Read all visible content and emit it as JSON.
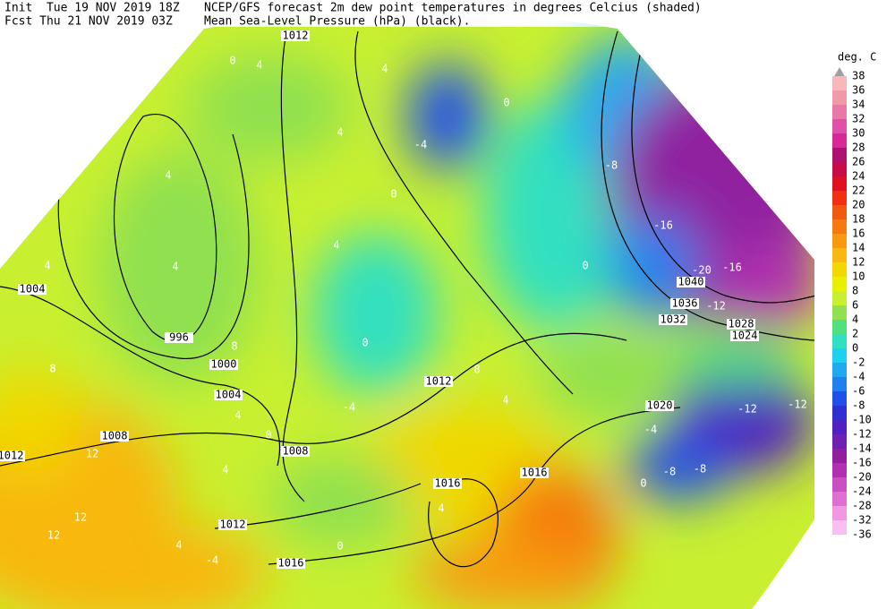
{
  "header": {
    "init": "Init  Tue 19 NOV 2019 18Z",
    "title": "NCEP/GFS forecast 2m dew point temperatures in degrees Celcius (shaded)",
    "forecast": "Fcst Thu 21 NOV 2019 03Z",
    "subtitle": "Mean Sea-Level Pressure (hPa) (black)."
  },
  "colorbar": {
    "unit": "deg. C",
    "items": [
      {
        "label": "38",
        "color": "#a0a0a0"
      },
      {
        "label": "36",
        "color": "#f8b8b8"
      },
      {
        "label": "34",
        "color": "#f09aa8"
      },
      {
        "label": "32",
        "color": "#e878a8"
      },
      {
        "label": "30",
        "color": "#e050a8"
      },
      {
        "label": "28",
        "color": "#d82898"
      },
      {
        "label": "26",
        "color": "#b01070"
      },
      {
        "label": "24",
        "color": "#c80c48"
      },
      {
        "label": "22",
        "color": "#e01020"
      },
      {
        "label": "20",
        "color": "#f03010"
      },
      {
        "label": "18",
        "color": "#f05a10"
      },
      {
        "label": "16",
        "color": "#f57a10"
      },
      {
        "label": "14",
        "color": "#f89a10"
      },
      {
        "label": "12",
        "color": "#f8b810"
      },
      {
        "label": "10",
        "color": "#f0d800"
      },
      {
        "label": "8",
        "color": "#e8f000"
      },
      {
        "label": "6",
        "color": "#c8f030"
      },
      {
        "label": "4",
        "color": "#90e050"
      },
      {
        "label": "2",
        "color": "#50e080"
      },
      {
        "label": "0",
        "color": "#30e0c0"
      },
      {
        "label": "-2",
        "color": "#20d0f0"
      },
      {
        "label": "-4",
        "color": "#20a8f0"
      },
      {
        "label": "-6",
        "color": "#2080f0"
      },
      {
        "label": "-8",
        "color": "#2050e8"
      },
      {
        "label": "-10",
        "color": "#3030d0"
      },
      {
        "label": "-12",
        "color": "#5020c0"
      },
      {
        "label": "-14",
        "color": "#7020b0"
      },
      {
        "label": "-16",
        "color": "#9020a0"
      },
      {
        "label": "-20",
        "color": "#b030b0"
      },
      {
        "label": "-24",
        "color": "#c850c0"
      },
      {
        "label": "-28",
        "color": "#e070d0"
      },
      {
        "label": "-32",
        "color": "#f098e0"
      },
      {
        "label": "-36",
        "color": "#f8c0f0"
      }
    ]
  },
  "map": {
    "isobar_labels": [
      "1012",
      "1004",
      "996",
      "1000",
      "1004",
      "1008",
      "1012",
      "1008",
      "1012",
      "1016",
      "1016",
      "1012",
      "1016",
      "1020",
      "1024",
      "1028",
      "1032",
      "1036",
      "1040"
    ],
    "field_labels": [
      "4",
      "0",
      "4",
      "4",
      "4",
      "4",
      "4",
      "-4",
      "0",
      "0",
      "4",
      "0",
      "-8",
      "-16",
      "-16",
      "-20",
      "-12",
      "-12",
      "-12",
      "-8",
      "-8",
      "-4",
      "0",
      "8",
      "12",
      "12",
      "12",
      "4",
      "4",
      "-4",
      "0",
      "0",
      "4",
      "4",
      "8",
      "0",
      "-4",
      "8",
      "4"
    ]
  }
}
